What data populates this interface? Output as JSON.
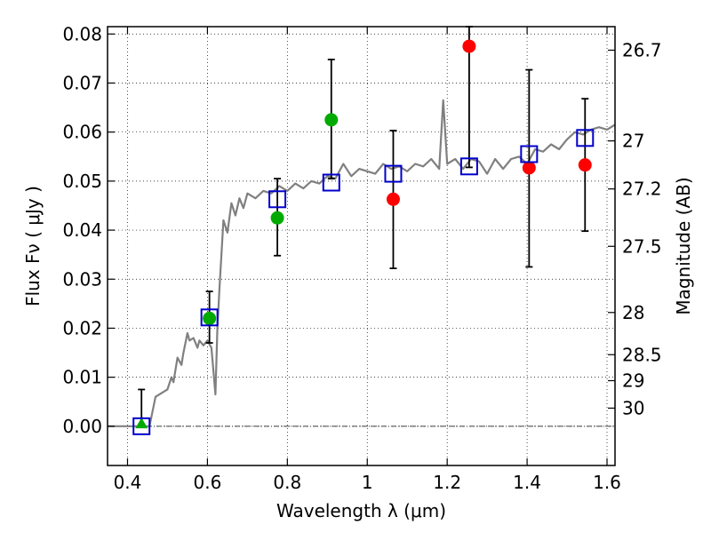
{
  "chart_data": {
    "type": "scatter",
    "xlabel": "Wavelength  λ (μm)",
    "ylabel": "Flux  Fν  ( μJy )",
    "ylabel_right": "Magnitude (AB)",
    "xlim": [
      0.35,
      1.62
    ],
    "ylim": [
      -0.008,
      0.0815
    ],
    "grid": true,
    "x_ticks": [
      0.4,
      0.6,
      0.8,
      1.0,
      1.2,
      1.4,
      1.6
    ],
    "x_tick_labels": [
      "0.4",
      "0.6",
      "0.8",
      "1",
      "1.2",
      "1.4",
      "1.6"
    ],
    "y_ticks": [
      0.0,
      0.01,
      0.02,
      0.03,
      0.04,
      0.05,
      0.06,
      0.07,
      0.08
    ],
    "y_tick_labels": [
      "0.00",
      "0.01",
      "0.02",
      "0.03",
      "0.04",
      "0.05",
      "0.06",
      "0.07",
      "0.08"
    ],
    "right_ticks": [
      {
        "label": "26.7",
        "flux": 0.0767
      },
      {
        "label": "27",
        "flux": 0.0582
      },
      {
        "label": "27.2",
        "flux": 0.0484
      },
      {
        "label": "27.5",
        "flux": 0.0367
      },
      {
        "label": "28",
        "flux": 0.0232
      },
      {
        "label": "28.5",
        "flux": 0.0146
      },
      {
        "label": "29",
        "flux": 0.0093
      },
      {
        "label": "30",
        "flux": 0.0037
      }
    ],
    "model_spectrum": {
      "color": "#808080",
      "x": [
        0.35,
        0.44,
        0.455,
        0.47,
        0.49,
        0.5,
        0.51,
        0.515,
        0.525,
        0.535,
        0.54,
        0.55,
        0.555,
        0.565,
        0.575,
        0.58,
        0.59,
        0.6,
        0.61,
        0.62,
        0.625,
        0.63,
        0.64,
        0.65,
        0.66,
        0.67,
        0.68,
        0.69,
        0.7,
        0.72,
        0.74,
        0.76,
        0.78,
        0.8,
        0.82,
        0.84,
        0.86,
        0.88,
        0.9,
        0.92,
        0.94,
        0.96,
        0.98,
        1.0,
        1.02,
        1.04,
        1.06,
        1.08,
        1.1,
        1.12,
        1.14,
        1.16,
        1.18,
        1.19,
        1.2,
        1.22,
        1.24,
        1.26,
        1.28,
        1.3,
        1.32,
        1.34,
        1.36,
        1.38,
        1.4,
        1.42,
        1.44,
        1.46,
        1.48,
        1.5,
        1.52,
        1.54,
        1.56,
        1.58,
        1.6,
        1.62
      ],
      "y": [
        0.0,
        0.0,
        0.0,
        0.006,
        0.007,
        0.0075,
        0.01,
        0.009,
        0.014,
        0.0125,
        0.015,
        0.019,
        0.0175,
        0.018,
        0.016,
        0.0175,
        0.0165,
        0.0175,
        0.016,
        0.0065,
        0.02,
        0.028,
        0.042,
        0.0395,
        0.0455,
        0.043,
        0.0465,
        0.0445,
        0.0475,
        0.0465,
        0.048,
        0.0475,
        0.049,
        0.048,
        0.0495,
        0.0485,
        0.05,
        0.0495,
        0.051,
        0.0505,
        0.0535,
        0.051,
        0.0525,
        0.052,
        0.0515,
        0.0535,
        0.0525,
        0.053,
        0.052,
        0.0535,
        0.053,
        0.0545,
        0.0525,
        0.0665,
        0.0535,
        0.0545,
        0.0525,
        0.0545,
        0.054,
        0.0515,
        0.0545,
        0.0525,
        0.0545,
        0.055,
        0.0535,
        0.0565,
        0.056,
        0.0575,
        0.0565,
        0.0585,
        0.06,
        0.0595,
        0.0605,
        0.061,
        0.0605,
        0.0615
      ]
    },
    "model_bands": {
      "name": "",
      "marker": "open-square",
      "color": "#0000cc",
      "x": [
        0.435,
        0.605,
        0.775,
        0.91,
        1.065,
        1.255,
        1.405,
        1.545
      ],
      "y": [
        0.0,
        0.0222,
        0.0463,
        0.0497,
        0.0515,
        0.053,
        0.0555,
        0.0588
      ]
    },
    "observed": {
      "marker": "filled-circle",
      "x": [
        0.435,
        0.605,
        0.775,
        0.91,
        1.065,
        1.255,
        1.405,
        1.545
      ],
      "y": [
        0.0005,
        0.022,
        0.0425,
        0.0625,
        0.0463,
        0.0775,
        0.0527,
        0.0533
      ],
      "err_low": [
        0.0,
        0.017,
        0.0348,
        0.0505,
        0.0322,
        0.0528,
        0.0325,
        0.0398
      ],
      "err_high": [
        0.0075,
        0.0275,
        0.0505,
        0.0748,
        0.0603,
        0.0815,
        0.0727,
        0.0668
      ],
      "colors": [
        "#00aa00",
        "#00aa00",
        "#00aa00",
        "#00aa00",
        "#ff0000",
        "#ff0000",
        "#ff0000",
        "#ff0000"
      ],
      "shapes": [
        "triangle",
        "circle",
        "circle",
        "circle",
        "circle",
        "circle",
        "circle",
        "circle"
      ]
    },
    "zero_line": {
      "y": 0.0,
      "style": "dash-dot"
    }
  }
}
